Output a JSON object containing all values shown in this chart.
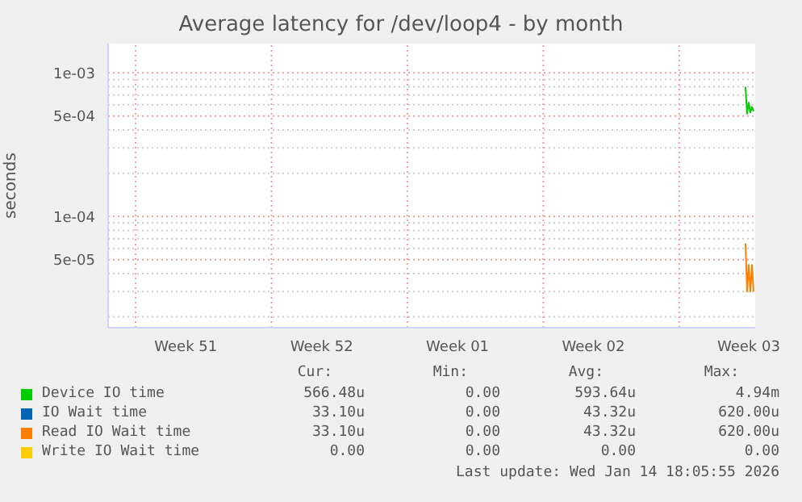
{
  "chart_data": {
    "type": "line",
    "title": "Average latency for /dev/loop4 - by month",
    "ylabel": "seconds",
    "log": "y",
    "grid": true,
    "legend": "bottom",
    "marker": "none",
    "line_style": "solid",
    "x": [
      "2026-01-14T06:00",
      "2026-01-14T08:00",
      "2026-01-14T10:00",
      "2026-01-14T12:00",
      "2026-01-14T14:00",
      "2026-01-14T16:00"
    ],
    "xlim": [
      "2025-12-12T10:00",
      "2026-01-14T18:00"
    ],
    "xticks": [
      {
        "value": "2025-12-13T20:00",
        "label": null
      },
      {
        "value": "2025-12-16T10:00",
        "label": "Week 51"
      },
      {
        "value": "2025-12-20T20:00",
        "label": null
      },
      {
        "value": "2025-12-23T10:00",
        "label": "Week 52"
      },
      {
        "value": "2025-12-27T20:00",
        "label": null
      },
      {
        "value": "2025-12-30T10:00",
        "label": "Week 01"
      },
      {
        "value": "2026-01-03T20:00",
        "label": null
      },
      {
        "value": "2026-01-06T10:00",
        "label": "Week 02"
      },
      {
        "value": "2026-01-10T20:00",
        "label": null
      },
      {
        "value": "2026-01-14T10:00",
        "label": "Week 03"
      }
    ],
    "ylim": [
      1.68e-05,
      0.0016
    ],
    "yticks": [
      {
        "value": 2e-05,
        "label": null
      },
      {
        "value": 3e-05,
        "label": null
      },
      {
        "value": 4e-05,
        "label": null
      },
      {
        "value": 5e-05,
        "label": "5e-05"
      },
      {
        "value": 6e-05,
        "label": null
      },
      {
        "value": 7e-05,
        "label": null
      },
      {
        "value": 8e-05,
        "label": null
      },
      {
        "value": 9e-05,
        "label": null
      },
      {
        "value": 0.0001,
        "label": "1e-04"
      },
      {
        "value": 0.0002,
        "label": null
      },
      {
        "value": 0.0003,
        "label": null
      },
      {
        "value": 0.0004,
        "label": null
      },
      {
        "value": 0.0005,
        "label": "5e-04"
      },
      {
        "value": 0.0006,
        "label": null
      },
      {
        "value": 0.0007,
        "label": null
      },
      {
        "value": 0.0008,
        "label": null
      },
      {
        "value": 0.0009,
        "label": null
      },
      {
        "value": 0.001,
        "label": "1e-03"
      }
    ],
    "series": [
      {
        "name": "Device IO time",
        "color": "#00cc00",
        "values": [
          0.0008,
          0.00052,
          0.00062,
          0.00053,
          0.00058,
          0.00054
        ]
      },
      {
        "name": "IO Wait time",
        "color": "#0066b3",
        "values": [
          null,
          null,
          null,
          null,
          null,
          null
        ]
      },
      {
        "name": "Read IO Wait time",
        "color": "#ff8000",
        "values": [
          6.5e-05,
          3e-05,
          4.6e-05,
          3e-05,
          4.6e-05,
          3e-05
        ]
      },
      {
        "name": "Write IO Wait time",
        "color": "#ffcc00",
        "values": [
          null,
          null,
          null,
          null,
          null,
          null
        ]
      }
    ],
    "annotations": [
      "Cur:",
      "Min:",
      "Avg:",
      "Max:",
      "566.48u",
      "0.00",
      "593.64u",
      "4.94m",
      "33.10u",
      "0.00",
      "43.32u",
      "620.00u",
      "33.10u",
      "0.00",
      "43.32u",
      "620.00u",
      "0.00",
      "0.00",
      "0.00",
      "0.00",
      "Last update: Wed Jan 14 18:05:55 2026"
    ]
  }
}
